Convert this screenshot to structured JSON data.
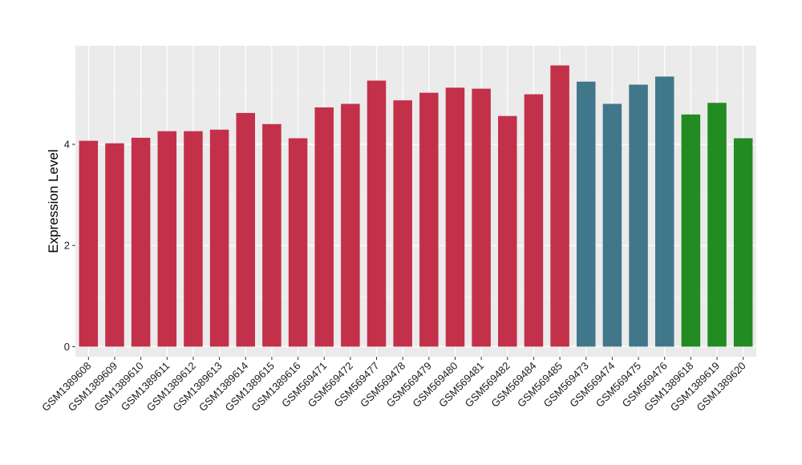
{
  "chart_data": {
    "type": "bar",
    "title": "",
    "xlabel": "",
    "ylabel": "Expression Level",
    "ylim": [
      -0.2,
      5.95
    ],
    "yticks": [
      0,
      2,
      4
    ],
    "ytick_labels": [
      "0",
      "2",
      "4"
    ],
    "grid": true,
    "legend": "none",
    "colors": {
      "panel_background": "#ebebeb",
      "major_grid": "#ffffff",
      "minor_grid": "#f5f5f5",
      "group_1": "#c3304a",
      "group_2": "#41778b",
      "group_3": "#228b22"
    },
    "categories": [
      "GSM1389608",
      "GSM1389609",
      "GSM1389610",
      "GSM1389611",
      "GSM1389612",
      "GSM1389613",
      "GSM1389614",
      "GSM1389615",
      "GSM1389616",
      "GSM569471",
      "GSM569472",
      "GSM569477",
      "GSM569478",
      "GSM569479",
      "GSM569480",
      "GSM569481",
      "GSM569482",
      "GSM569484",
      "GSM569485",
      "GSM569473",
      "GSM569474",
      "GSM569475",
      "GSM569476",
      "GSM1389618",
      "GSM1389619",
      "GSM1389620"
    ],
    "values": [
      4.07,
      4.02,
      4.13,
      4.26,
      4.26,
      4.29,
      4.62,
      4.4,
      4.12,
      4.73,
      4.8,
      5.26,
      4.87,
      5.02,
      5.12,
      5.1,
      4.56,
      4.99,
      5.56,
      5.24,
      4.8,
      5.18,
      5.34,
      4.59,
      4.82,
      4.12
    ],
    "bar_colors": [
      "#c3304a",
      "#c3304a",
      "#c3304a",
      "#c3304a",
      "#c3304a",
      "#c3304a",
      "#c3304a",
      "#c3304a",
      "#c3304a",
      "#c3304a",
      "#c3304a",
      "#c3304a",
      "#c3304a",
      "#c3304a",
      "#c3304a",
      "#c3304a",
      "#c3304a",
      "#c3304a",
      "#c3304a",
      "#41778b",
      "#41778b",
      "#41778b",
      "#41778b",
      "#228b22",
      "#228b22",
      "#228b22"
    ]
  }
}
